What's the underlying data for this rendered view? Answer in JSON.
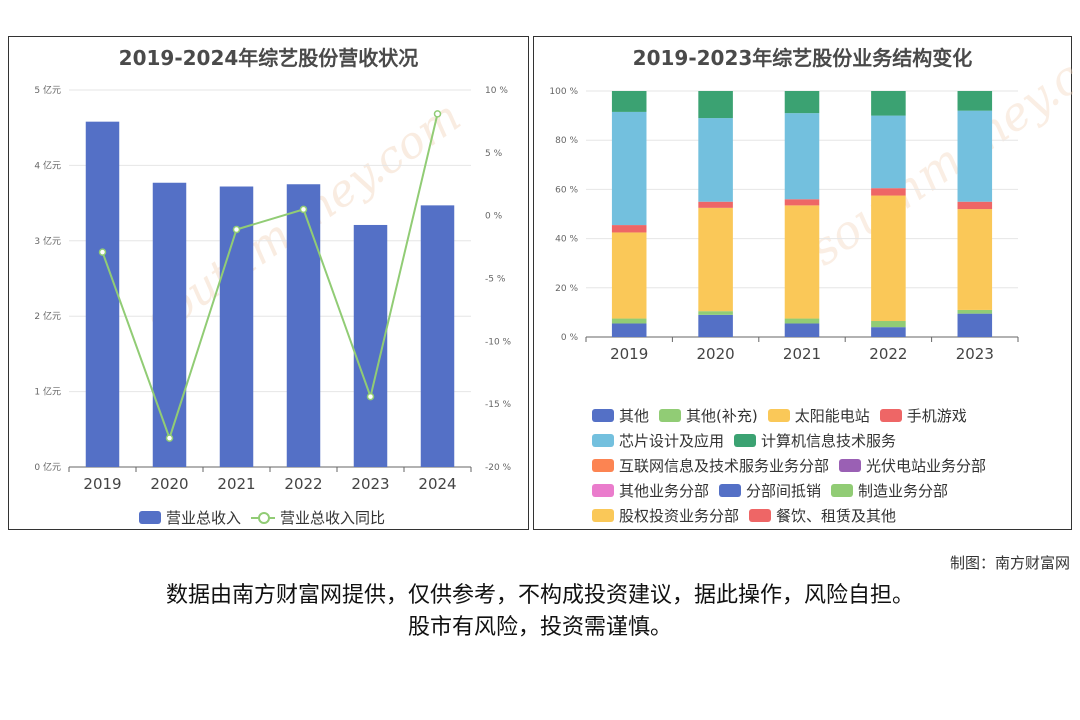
{
  "charts": {
    "left": {
      "chart_data": {
        "type": "bar",
        "title": "2019-2024年综艺股份营收状况",
        "categories": [
          "2019",
          "2020",
          "2021",
          "2022",
          "2023",
          "2024"
        ],
        "series": [
          {
            "name": "营业总收入",
            "type": "bar",
            "axis": "left",
            "values": [
              4.58,
              3.77,
              3.72,
              3.75,
              3.21,
              3.47
            ]
          },
          {
            "name": "营业总收入同比",
            "type": "line",
            "axis": "right",
            "values": [
              -2.9,
              -17.7,
              -1.1,
              0.5,
              -14.4,
              8.1
            ]
          }
        ],
        "y_left": {
          "min": 0,
          "max": 5,
          "ticks": [
            "0 亿元",
            "1 亿元",
            "2 亿元",
            "3 亿元",
            "4 亿元",
            "5 亿元"
          ]
        },
        "y_right": {
          "min": -20,
          "max": 10,
          "ticks": [
            "-20 %",
            "-15 %",
            "-10 %",
            "-5 %",
            "0 %",
            "5 %",
            "10 %"
          ]
        },
        "colors": {
          "bar": "#5470c6",
          "line": "#91cc75"
        },
        "legend_position": "bottom",
        "grid": true
      }
    },
    "right": {
      "chart_data": {
        "type": "bar",
        "stacked": true,
        "title": "2019-2023年综艺股份业务结构变化",
        "categories": [
          "2019",
          "2020",
          "2021",
          "2022",
          "2023"
        ],
        "y_axis": {
          "min": 0,
          "max": 100,
          "ticks": [
            "0 %",
            "20 %",
            "40 %",
            "60 %",
            "80 %",
            "100 %"
          ]
        },
        "series": [
          {
            "name": "其他",
            "color": "#5470c6",
            "values": [
              5.5,
              9.0,
              5.5,
              4.0,
              9.5
            ]
          },
          {
            "name": "其他(补充)",
            "color": "#91cc75",
            "values": [
              2.0,
              1.5,
              2.0,
              2.5,
              1.5
            ]
          },
          {
            "name": "太阳能电站",
            "color": "#fac858",
            "values": [
              35.0,
              42.0,
              46.0,
              51.0,
              41.0
            ]
          },
          {
            "name": "手机游戏",
            "color": "#ee6666",
            "values": [
              3.0,
              2.5,
              2.5,
              3.0,
              3.0
            ]
          },
          {
            "name": "芯片设计及应用",
            "color": "#73c0de",
            "values": [
              46.0,
              34.0,
              35.0,
              29.5,
              37.0
            ]
          },
          {
            "name": "计算机信息技术服务",
            "color": "#3ba272",
            "values": [
              8.5,
              11.0,
              9.0,
              10.0,
              8.0
            ]
          },
          {
            "name": "互联网信息及技术服务业务分部",
            "color": "#fc8452",
            "values": [
              0,
              0,
              0,
              0,
              0
            ]
          },
          {
            "name": "光伏电站业务分部",
            "color": "#9a60b4",
            "values": [
              0,
              0,
              0,
              0,
              0
            ]
          },
          {
            "name": "其他业务分部",
            "color": "#ea7ccc",
            "values": [
              0,
              0,
              0,
              0,
              0
            ]
          },
          {
            "name": "分部间抵销",
            "color": "#5470c6",
            "values": [
              0,
              0,
              0,
              0,
              0
            ]
          },
          {
            "name": "制造业务分部",
            "color": "#91cc75",
            "values": [
              0,
              0,
              0,
              0,
              0
            ]
          },
          {
            "name": "股权投资业务分部",
            "color": "#fac858",
            "values": [
              0,
              0,
              0,
              0,
              0
            ]
          },
          {
            "name": "餐饮、租赁及其他",
            "color": "#ee6666",
            "values": [
              0,
              0,
              0,
              0,
              0
            ]
          }
        ],
        "legend_position": "bottom",
        "grid": true
      }
    }
  },
  "watermark": {
    "cn": "南方财富网",
    "en": "southmoney.com"
  },
  "credit": "制图：南方财富网",
  "disclaimer": {
    "line1": "数据由南方财富网提供，仅供参考，不构成投资建议，据此操作，风险自担。",
    "line2": "股市有风险，投资需谨慎。"
  }
}
